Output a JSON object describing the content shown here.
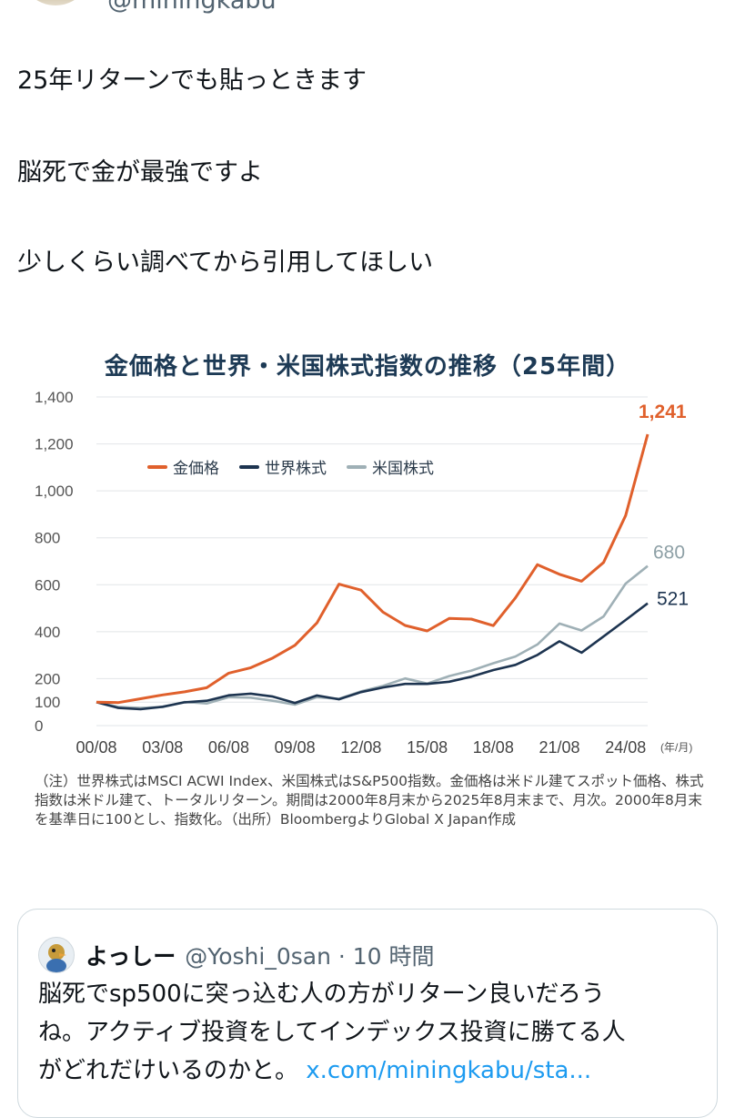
{
  "tweet": {
    "author_handle_partial": "@miningkabu",
    "lines": [
      "25年リターンでも貼っときます",
      "脳死で金が最強ですよ",
      "少しくらい調べてから引用してほしい"
    ]
  },
  "chart": {
    "title": "金価格と世界・米国株式指数の推移（25年間）",
    "note": "（注）世界株式はMSCI ACWI Index、米国株式はS&P500指数。金価格は米ドル建てスポット価格、株式指数は米ドル建て、トータルリターン。期間は2000年8月末から2025年8月末まで、月次。2000年8月末を基準日に100とし、指数化。（出所）BloombergよりGlobal X Japan作成",
    "unit_label": "(年/月)",
    "end_labels": {
      "gold": "1,241",
      "us": "680",
      "world": "521"
    }
  },
  "chart_data": {
    "type": "line",
    "title": "金価格と世界・米国株式指数の推移（25年間）",
    "xlabel": "(年/月)",
    "ylabel": "",
    "x_ticks": [
      "00/08",
      "03/08",
      "06/08",
      "09/08",
      "12/08",
      "15/08",
      "18/08",
      "21/08",
      "24/08"
    ],
    "y_ticks": [
      "0",
      "100",
      "200",
      "400",
      "600",
      "800",
      "1,000",
      "1,200",
      "1,400"
    ],
    "ylim": [
      0,
      1400
    ],
    "legend_position": "top-left",
    "grid": true,
    "x": [
      "00/08",
      "01/08",
      "02/08",
      "03/08",
      "04/08",
      "05/08",
      "06/08",
      "07/08",
      "08/08",
      "09/08",
      "10/08",
      "11/08",
      "12/08",
      "13/08",
      "14/08",
      "15/08",
      "16/08",
      "17/08",
      "18/08",
      "19/08",
      "20/08",
      "21/08",
      "22/08",
      "23/08",
      "24/08",
      "25/08"
    ],
    "series": [
      {
        "name": "金価格",
        "color": "#e0602c",
        "values": [
          100,
          98,
          115,
          130,
          145,
          160,
          225,
          245,
          290,
          340,
          440,
          600,
          580,
          480,
          430,
          400,
          460,
          450,
          430,
          540,
          690,
          640,
          620,
          690,
          900,
          1241
        ]
      },
      {
        "name": "世界株式",
        "color": "#1d3450",
        "values": [
          100,
          80,
          65,
          85,
          95,
          110,
          125,
          140,
          120,
          100,
          125,
          115,
          140,
          165,
          175,
          180,
          185,
          210,
          235,
          260,
          300,
          360,
          310,
          380,
          450,
          521
        ]
      },
      {
        "name": "米国株式",
        "color": "#9fb0b6",
        "values": [
          100,
          85,
          70,
          85,
          95,
          100,
          115,
          125,
          100,
          95,
          115,
          120,
          140,
          175,
          195,
          185,
          205,
          240,
          260,
          300,
          340,
          440,
          400,
          470,
          600,
          680
        ]
      }
    ]
  },
  "quote": {
    "name": "よっしー",
    "handle_time": "@Yoshi_0san · 10 時間",
    "body_lines": [
      "脳死でsp500に突っ込む人の方がリターン良いだろう",
      "ね。アクティブ投資をしてインデックス投資に勝てる人",
      "がどれだけいるのかと。"
    ],
    "link": "x.com/miningkabu/sta..."
  }
}
